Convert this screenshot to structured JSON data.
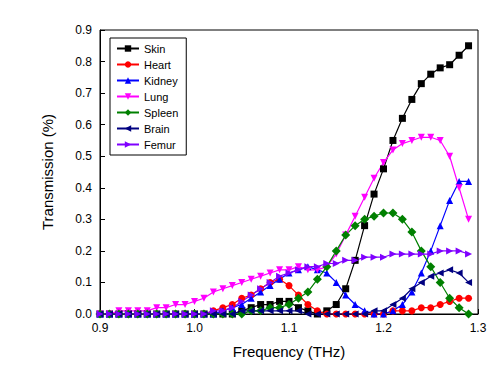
{
  "chart_data": {
    "type": "line",
    "x_label": "Frequency (THz)",
    "y_label": "Transmission (%)",
    "x": [
      0.9,
      0.91,
      0.92,
      0.93,
      0.94,
      0.95,
      0.96,
      0.97,
      0.98,
      0.99,
      1.0,
      1.01,
      1.02,
      1.03,
      1.04,
      1.05,
      1.06,
      1.07,
      1.08,
      1.09,
      1.1,
      1.11,
      1.12,
      1.13,
      1.14,
      1.15,
      1.16,
      1.17,
      1.18,
      1.19,
      1.2,
      1.21,
      1.22,
      1.23,
      1.24,
      1.25,
      1.26,
      1.27,
      1.28,
      1.29
    ],
    "series": [
      {
        "name": "Skin",
        "color": "#000000",
        "marker": "square",
        "values": [
          0,
          0,
          0,
          0,
          0,
          0,
          0,
          0,
          0,
          0,
          0,
          0,
          0,
          0,
          0,
          0.01,
          0.02,
          0.03,
          0.03,
          0.04,
          0.04,
          0.02,
          0.01,
          0,
          0.01,
          0.03,
          0.08,
          0.17,
          0.28,
          0.38,
          0.46,
          0.55,
          0.62,
          0.68,
          0.73,
          0.76,
          0.78,
          0.79,
          0.82,
          0.85
        ]
      },
      {
        "name": "Heart",
        "color": "#ff0000",
        "marker": "circle",
        "values": [
          0,
          0,
          0,
          0,
          0,
          0,
          0,
          0,
          0,
          0,
          0,
          0,
          0.01,
          0.02,
          0.03,
          0.05,
          0.06,
          0.08,
          0.1,
          0.11,
          0.09,
          0.06,
          0.03,
          0.01,
          0,
          0,
          0,
          0,
          0,
          0,
          0,
          0.01,
          0.01,
          0.01,
          0.02,
          0.02,
          0.03,
          0.04,
          0.05,
          0.05
        ]
      },
      {
        "name": "Kidney",
        "color": "#0000ff",
        "marker": "triangle-up",
        "values": [
          0,
          0,
          0,
          0,
          0,
          0,
          0,
          0,
          0,
          0,
          0,
          0,
          0,
          0.01,
          0.02,
          0.03,
          0.05,
          0.07,
          0.09,
          0.11,
          0.13,
          0.14,
          0.15,
          0.14,
          0.13,
          0.1,
          0.06,
          0.03,
          0.01,
          0,
          0,
          0.01,
          0.03,
          0.07,
          0.13,
          0.2,
          0.28,
          0.36,
          0.42,
          0.42
        ]
      },
      {
        "name": "Lung",
        "color": "#ff00ff",
        "marker": "triangle-down",
        "values": [
          0,
          0,
          0.01,
          0.01,
          0.01,
          0.01,
          0.02,
          0.02,
          0.03,
          0.03,
          0.04,
          0.05,
          0.07,
          0.08,
          0.09,
          0.1,
          0.11,
          0.12,
          0.13,
          0.14,
          0.14,
          0.15,
          0.14,
          0.14,
          0.15,
          0.19,
          0.25,
          0.31,
          0.37,
          0.43,
          0.48,
          0.52,
          0.54,
          0.55,
          0.56,
          0.56,
          0.55,
          0.5,
          0.4,
          0.3
        ]
      },
      {
        "name": "Spleen",
        "color": "#008000",
        "marker": "diamond",
        "values": [
          0,
          0,
          0,
          0,
          0,
          0,
          0,
          0,
          0,
          0,
          0,
          0,
          0,
          0,
          0,
          0,
          0.01,
          0.01,
          0.02,
          0.02,
          0.03,
          0.05,
          0.07,
          0.11,
          0.15,
          0.2,
          0.25,
          0.28,
          0.3,
          0.31,
          0.32,
          0.32,
          0.3,
          0.26,
          0.2,
          0.15,
          0.1,
          0.05,
          0.02,
          0
        ]
      },
      {
        "name": "Brain",
        "color": "#000080",
        "marker": "triangle-left",
        "values": [
          0,
          0,
          0,
          0,
          0,
          0,
          0,
          0,
          0,
          0,
          0,
          0,
          0,
          0,
          0,
          0.01,
          0.01,
          0.01,
          0.01,
          0.01,
          0.01,
          0.01,
          0,
          0,
          0,
          0,
          0,
          0,
          0,
          0.01,
          0.01,
          0.03,
          0.05,
          0.08,
          0.1,
          0.12,
          0.13,
          0.14,
          0.13,
          0.1
        ]
      },
      {
        "name": "Femur",
        "color": "#7f00ff",
        "marker": "triangle-right",
        "values": [
          0,
          0,
          0,
          0,
          0,
          0,
          0,
          0,
          0,
          0,
          0,
          0,
          0.01,
          0.01,
          0.02,
          0.04,
          0.06,
          0.08,
          0.1,
          0.12,
          0.13,
          0.14,
          0.15,
          0.15,
          0.16,
          0.16,
          0.17,
          0.17,
          0.18,
          0.18,
          0.18,
          0.19,
          0.19,
          0.19,
          0.19,
          0.19,
          0.2,
          0.2,
          0.2,
          0.19
        ]
      }
    ],
    "xlim": [
      0.9,
      1.3
    ],
    "xticks": [
      0.9,
      {
        "value": 1,
        "label": "1.0"
      },
      1.1,
      1.2,
      1.3
    ],
    "ylim": [
      0,
      0.9
    ],
    "yticks": [
      {
        "value": 0,
        "label": "0.0"
      },
      0.1,
      0.2,
      0.3,
      0.4,
      0.5,
      0.6,
      0.7,
      0.8,
      0.9
    ],
    "grid": false,
    "legend": "upper left"
  }
}
